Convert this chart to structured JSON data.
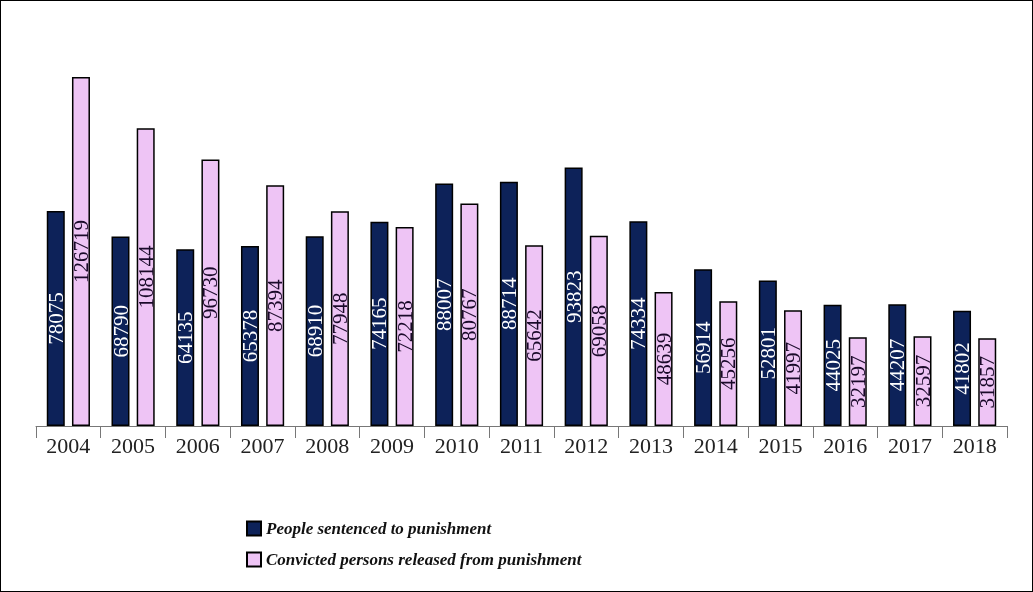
{
  "chart_data": {
    "type": "bar",
    "categories": [
      "2004",
      "2005",
      "2006",
      "2007",
      "2008",
      "2009",
      "2010",
      "2011",
      "2012",
      "2013",
      "2014",
      "2015",
      "2016",
      "2017",
      "2018"
    ],
    "series": [
      {
        "name": "People sentenced to punishment",
        "color": "#0d2259",
        "values": [
          78075,
          68790,
          64135,
          65378,
          68910,
          74165,
          88007,
          88714,
          93823,
          74334,
          56914,
          52801,
          44025,
          44207,
          41802
        ]
      },
      {
        "name": "Convicted persons released from punishment",
        "color": "#eec4f5",
        "values": [
          126719,
          108144,
          96730,
          87394,
          77948,
          72218,
          80767,
          65642,
          69058,
          48639,
          45256,
          41997,
          32197,
          32597,
          31857
        ]
      }
    ],
    "data_labels": true,
    "legend": "bottom"
  }
}
